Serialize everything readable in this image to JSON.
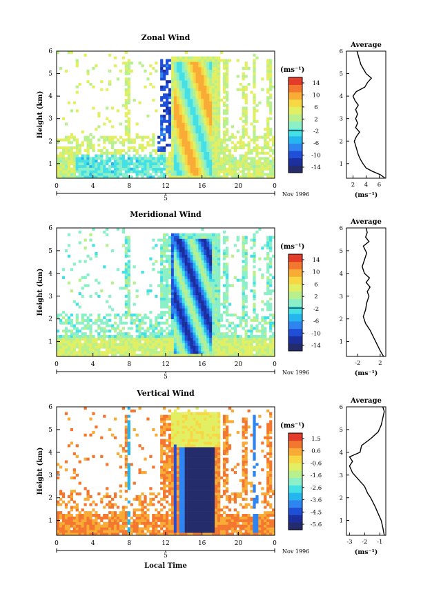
{
  "chart_data": [
    {
      "type": "heatmap",
      "title": "Zonal Wind",
      "ylabel": "Height (km)",
      "xlabel": "",
      "xticks": [
        "0",
        "4",
        "8",
        "12",
        "16",
        "20",
        "0"
      ],
      "x_range": [
        0,
        24
      ],
      "yticks": [
        "1",
        "2",
        "3",
        "4",
        "5",
        "6"
      ],
      "y_range": [
        0.35,
        6
      ],
      "date_marker": "5",
      "date_label": "Nov 1996",
      "colorbar": {
        "unit": "(ms⁻¹)",
        "ticks": [
          "14",
          "10",
          "6",
          "2",
          "-2",
          "-6",
          "-10",
          "-14"
        ],
        "range": [
          -16,
          16
        ]
      },
      "profile": {
        "title": "Average",
        "xticks": [
          "2",
          "4",
          "6"
        ],
        "xlim": [
          1,
          7
        ],
        "xlabel": "(ms⁻¹)",
        "yticks": [
          "1",
          "2",
          "3",
          "4",
          "5",
          "6"
        ],
        "points": [
          [
            6.9,
            0.35
          ],
          [
            6.2,
            0.5
          ],
          [
            5.0,
            0.65
          ],
          [
            4.0,
            0.8
          ],
          [
            3.5,
            1.0
          ],
          [
            3.1,
            1.2
          ],
          [
            2.8,
            1.4
          ],
          [
            2.6,
            1.6
          ],
          [
            2.4,
            1.8
          ],
          [
            2.2,
            2.0
          ],
          [
            2.5,
            2.2
          ],
          [
            3.0,
            2.4
          ],
          [
            2.4,
            2.6
          ],
          [
            2.7,
            2.8
          ],
          [
            2.4,
            3.0
          ],
          [
            2.7,
            3.2
          ],
          [
            2.4,
            3.4
          ],
          [
            2.8,
            3.6
          ],
          [
            2.3,
            3.8
          ],
          [
            2.0,
            4.0
          ],
          [
            2.5,
            4.2
          ],
          [
            3.8,
            4.4
          ],
          [
            4.2,
            4.6
          ],
          [
            4.8,
            4.8
          ],
          [
            4.0,
            5.0
          ],
          [
            3.6,
            5.2
          ],
          [
            3.2,
            5.4
          ],
          [
            3.0,
            5.6
          ],
          [
            2.8,
            5.8
          ],
          [
            2.6,
            6.0
          ]
        ]
      }
    },
    {
      "type": "heatmap",
      "title": "Meridional Wind",
      "ylabel": "Height (km)",
      "xlabel": "",
      "xticks": [
        "0",
        "4",
        "8",
        "12",
        "16",
        "20",
        "0"
      ],
      "x_range": [
        0,
        24
      ],
      "yticks": [
        "1",
        "2",
        "3",
        "4",
        "5",
        "6"
      ],
      "y_range": [
        0.35,
        6
      ],
      "date_marker": "5",
      "date_label": "Nov 1996",
      "colorbar": {
        "unit": "(ms⁻¹)",
        "ticks": [
          "14",
          "10",
          "6",
          "2",
          "-2",
          "-6",
          "-10",
          "-14"
        ],
        "range": [
          -16,
          16
        ]
      },
      "profile": {
        "title": "Average",
        "xticks": [
          "-2",
          "2"
        ],
        "xlim": [
          -4,
          3
        ],
        "xlabel": "(ms⁻¹)",
        "yticks": [
          "1",
          "2",
          "3",
          "4",
          "5",
          "6"
        ],
        "points": [
          [
            2.6,
            0.35
          ],
          [
            2.0,
            0.6
          ],
          [
            1.4,
            0.9
          ],
          [
            0.8,
            1.2
          ],
          [
            0.2,
            1.5
          ],
          [
            -0.6,
            1.8
          ],
          [
            -1.0,
            2.1
          ],
          [
            -0.6,
            2.4
          ],
          [
            -0.4,
            2.7
          ],
          [
            0.0,
            3.0
          ],
          [
            -0.3,
            3.2
          ],
          [
            0.2,
            3.4
          ],
          [
            -0.5,
            3.6
          ],
          [
            0.1,
            3.8
          ],
          [
            -0.8,
            4.0
          ],
          [
            -1.2,
            4.3
          ],
          [
            -0.8,
            4.6
          ],
          [
            -0.4,
            4.9
          ],
          [
            -1.0,
            5.2
          ],
          [
            0.0,
            5.4
          ],
          [
            -0.6,
            5.6
          ],
          [
            -0.3,
            5.8
          ],
          [
            -0.5,
            6.0
          ]
        ]
      }
    },
    {
      "type": "heatmap",
      "title": "Vertical Wind",
      "ylabel": "Height (km)",
      "xlabel": "Local Time",
      "xticks": [
        "0",
        "4",
        "8",
        "12",
        "16",
        "20",
        "0"
      ],
      "x_range": [
        0,
        24
      ],
      "yticks": [
        "1",
        "2",
        "3",
        "4",
        "5",
        "6"
      ],
      "y_range": [
        0.35,
        6
      ],
      "date_marker": "5",
      "date_label": "Nov 1996",
      "colorbar": {
        "unit": "(ms⁻¹)",
        "ticks": [
          "1.5",
          "0.6",
          "-0.6",
          "-1.6",
          "-2.6",
          "-3.6",
          "-4.5",
          "-5.6"
        ],
        "range": [
          -6.2,
          2.2
        ]
      },
      "profile": {
        "title": "Average",
        "xticks": [
          "-3",
          "-2",
          "-1"
        ],
        "xlim": [
          -3.2,
          -0.6
        ],
        "xlabel": "(ms⁻¹)",
        "yticks": [
          "1",
          "2",
          "3",
          "4",
          "5",
          "6"
        ],
        "points": [
          [
            -0.7,
            0.35
          ],
          [
            -0.8,
            0.7
          ],
          [
            -0.9,
            1.0
          ],
          [
            -1.1,
            1.3
          ],
          [
            -1.3,
            1.6
          ],
          [
            -1.6,
            2.0
          ],
          [
            -1.8,
            2.2
          ],
          [
            -2.0,
            2.5
          ],
          [
            -2.4,
            2.8
          ],
          [
            -2.8,
            3.1
          ],
          [
            -3.0,
            3.4
          ],
          [
            -2.8,
            3.6
          ],
          [
            -3.0,
            3.8
          ],
          [
            -2.3,
            4.0
          ],
          [
            -2.2,
            4.3
          ],
          [
            -1.6,
            4.6
          ],
          [
            -1.1,
            4.9
          ],
          [
            -0.9,
            5.2
          ],
          [
            -0.8,
            5.5
          ],
          [
            -0.7,
            5.8
          ],
          [
            -0.8,
            6.0
          ]
        ]
      }
    }
  ]
}
